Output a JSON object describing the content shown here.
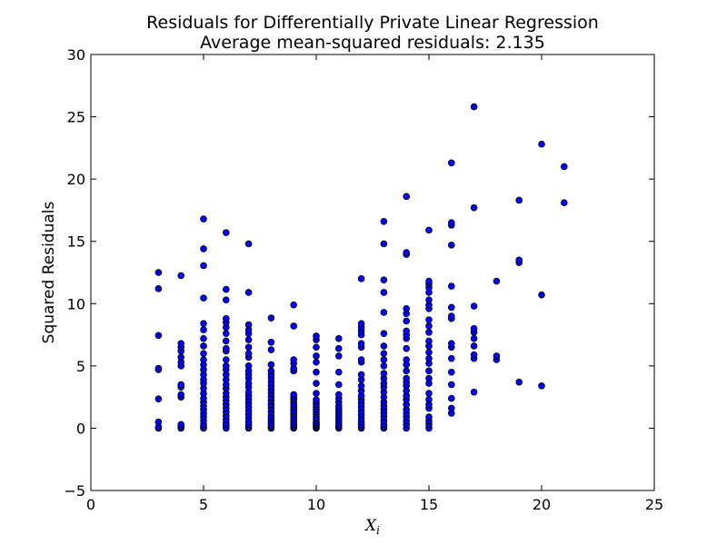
{
  "chart_data": {
    "type": "scatter",
    "title": "Residuals for Differentially Private Linear Regression",
    "subtitle": "Average mean-squared residuals: 2.135",
    "xlabel": {
      "main": "X",
      "sub": "i"
    },
    "ylabel": "Squared Residuals",
    "xlim": [
      0,
      25
    ],
    "ylim": [
      -5,
      30
    ],
    "xticks": [
      "0",
      "5",
      "10",
      "15",
      "20",
      "25"
    ],
    "yticks": [
      "−5",
      "0",
      "5",
      "10",
      "15",
      "20",
      "25",
      "30"
    ],
    "grid": false,
    "marker_color": "#0000ff",
    "marker_edge": "#000000",
    "points_by_x": [
      {
        "x": 3,
        "y": [
          0.0,
          0.1,
          0.5,
          2.35,
          4.7,
          4.8,
          7.45,
          11.2,
          12.5
        ]
      },
      {
        "x": 4,
        "y": [
          0.0,
          0.1,
          0.3,
          2.5,
          2.7,
          3.3,
          3.5,
          5.0,
          5.3,
          5.7,
          6.2,
          6.5,
          6.8,
          12.25
        ]
      },
      {
        "x": 5,
        "y": [
          0.0,
          0.1,
          0.3,
          0.6,
          0.9,
          1.2,
          1.5,
          1.8,
          2.1,
          2.4,
          2.8,
          3.2,
          3.6,
          3.9,
          4.3,
          4.7,
          5.1,
          5.5,
          6.0,
          6.6,
          7.2,
          7.9,
          8.4,
          10.45,
          13.05,
          14.4,
          16.8
        ]
      },
      {
        "x": 6,
        "y": [
          0.0,
          0.2,
          0.4,
          0.7,
          1.0,
          1.3,
          1.6,
          1.9,
          2.2,
          2.5,
          2.8,
          3.2,
          3.5,
          3.9,
          4.3,
          4.7,
          5.0,
          5.5,
          6.2,
          6.4,
          7.0,
          7.6,
          8.1,
          8.5,
          8.8,
          10.3,
          11.15,
          15.7
        ]
      },
      {
        "x": 7,
        "y": [
          0.0,
          0.1,
          0.3,
          0.5,
          0.8,
          1.1,
          1.4,
          1.7,
          2.0,
          2.3,
          2.6,
          2.9,
          3.3,
          3.6,
          4.0,
          4.3,
          4.6,
          5.0,
          5.7,
          6.0,
          6.5,
          7.1,
          7.6,
          7.9,
          8.3,
          10.9,
          14.8
        ]
      },
      {
        "x": 8,
        "y": [
          0.0,
          0.1,
          0.2,
          0.4,
          0.6,
          0.8,
          1.0,
          1.3,
          1.6,
          1.9,
          2.2,
          2.5,
          2.8,
          3.1,
          3.4,
          3.7,
          4.0,
          4.3,
          4.6,
          5.1,
          6.3,
          6.9,
          8.85
        ]
      },
      {
        "x": 9,
        "y": [
          0.0,
          0.1,
          0.2,
          0.3,
          0.5,
          0.7,
          0.9,
          1.1,
          1.3,
          1.5,
          1.7,
          1.9,
          2.1,
          2.3,
          2.5,
          2.7,
          4.6,
          4.8,
          5.2,
          5.5,
          8.2,
          9.9
        ]
      },
      {
        "x": 10,
        "y": [
          0.0,
          0.1,
          0.2,
          0.3,
          0.4,
          0.5,
          0.7,
          0.9,
          1.1,
          1.3,
          1.5,
          1.7,
          1.9,
          2.1,
          2.3,
          2.8,
          3.6,
          4.5,
          5.3,
          5.8,
          6.5,
          7.1,
          7.4
        ]
      },
      {
        "x": 11,
        "y": [
          0.0,
          0.1,
          0.2,
          0.4,
          0.6,
          0.8,
          1.0,
          1.2,
          1.4,
          1.6,
          1.8,
          2.1,
          2.4,
          2.7,
          3.5,
          4.5,
          5.8,
          6.4,
          7.2
        ]
      },
      {
        "x": 12,
        "y": [
          0.0,
          0.1,
          0.3,
          0.5,
          0.8,
          1.1,
          1.4,
          1.7,
          2.0,
          2.3,
          2.6,
          3.0,
          3.4,
          3.9,
          4.3,
          5.3,
          5.5,
          6.5,
          6.8,
          7.5,
          7.8,
          8.1,
          8.4,
          12.0
        ]
      },
      {
        "x": 13,
        "y": [
          0.0,
          0.1,
          0.3,
          0.6,
          0.9,
          1.2,
          1.5,
          1.8,
          2.1,
          2.5,
          2.9,
          3.3,
          3.6,
          4.0,
          4.4,
          5.0,
          5.5,
          6.0,
          6.6,
          7.6,
          9.3,
          10.9,
          11.9,
          14.8,
          16.6
        ]
      },
      {
        "x": 14,
        "y": [
          0.0,
          0.3,
          0.6,
          0.9,
          1.2,
          1.5,
          1.9,
          2.3,
          2.6,
          3.0,
          3.4,
          3.7,
          4.0,
          4.6,
          5.1,
          5.5,
          6.4,
          7.2,
          7.5,
          7.8,
          8.6,
          9.2,
          9.6,
          13.95,
          14.1,
          18.6
        ]
      },
      {
        "x": 15,
        "y": [
          0.0,
          0.3,
          0.6,
          0.9,
          1.6,
          1.9,
          2.3,
          2.8,
          3.6,
          4.0,
          4.6,
          5.2,
          5.6,
          6.1,
          6.6,
          7.0,
          7.7,
          8.2,
          8.7,
          9.6,
          9.9,
          10.3,
          10.9,
          11.3,
          11.6,
          11.8,
          15.9
        ]
      },
      {
        "x": 16,
        "y": [
          1.2,
          1.6,
          2.4,
          3.5,
          4.5,
          5.6,
          6.5,
          6.8,
          8.8,
          9.0,
          9.7,
          11.4,
          14.7,
          16.3,
          16.5,
          21.3
        ]
      },
      {
        "x": 17,
        "y": [
          2.9,
          5.6,
          5.9,
          6.6,
          7.2,
          7.7,
          8.0,
          9.8,
          17.7,
          25.8
        ]
      },
      {
        "x": 18,
        "y": [
          5.5,
          5.8,
          11.8
        ]
      },
      {
        "x": 19,
        "y": [
          3.7,
          13.3,
          13.5,
          18.3
        ]
      },
      {
        "x": 20,
        "y": [
          3.4,
          10.7,
          22.8
        ]
      },
      {
        "x": 21,
        "y": [
          18.1,
          21.0
        ]
      }
    ]
  }
}
